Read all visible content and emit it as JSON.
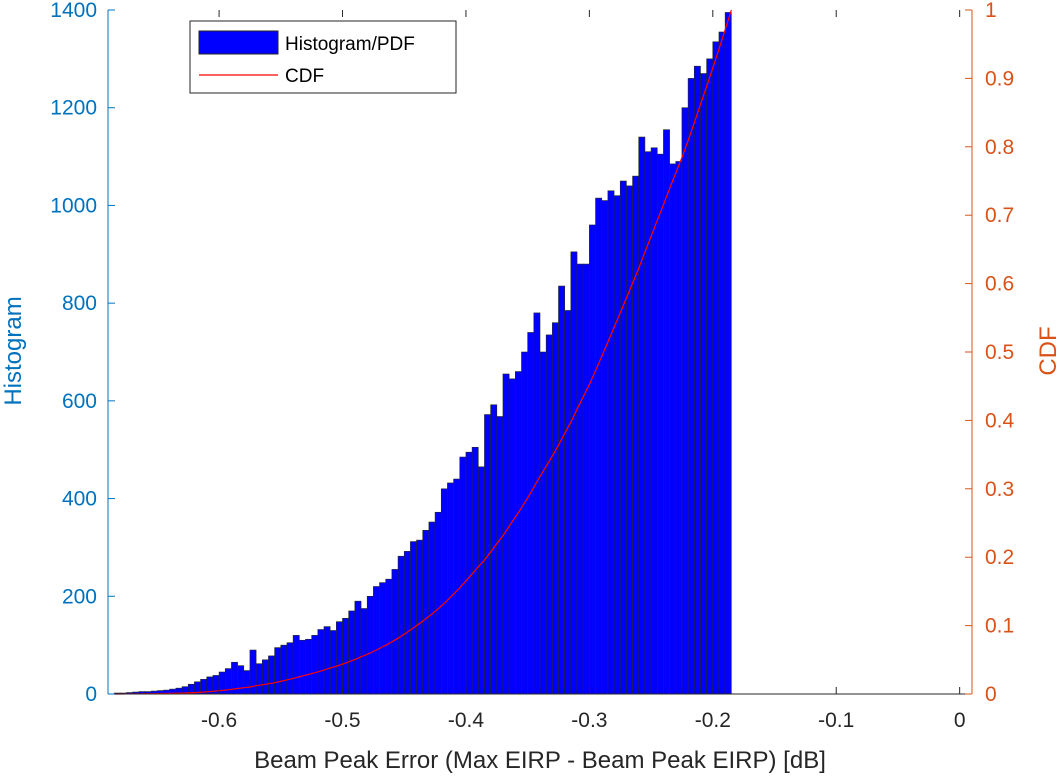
{
  "chart_data": {
    "type": "bar",
    "xlabel": "Beam Peak Error (Max EIRP - Beam Peak EIRP) [dB]",
    "ylabel": "Histogram",
    "y2label": "CDF",
    "xlim": [
      -0.69,
      0.01
    ],
    "ylim": [
      0,
      1400
    ],
    "y2lim": [
      0,
      1
    ],
    "xticks": [
      "-0.6",
      "-0.5",
      "-0.4",
      "-0.3",
      "-0.2",
      "-0.1",
      "0"
    ],
    "yticks": [
      "0",
      "200",
      "400",
      "600",
      "800",
      "1000",
      "1200",
      "1400"
    ],
    "y2ticks": [
      "0",
      "0.1",
      "0.2",
      "0.3",
      "0.4",
      "0.5",
      "0.6",
      "0.7",
      "0.8",
      "0.9",
      "1"
    ],
    "grid": false,
    "legend_position": "top-left",
    "legend": [
      {
        "name": "Histogram/PDF",
        "color": "#0000FF"
      },
      {
        "name": "CDF",
        "color": "#FF0000"
      }
    ],
    "colors": {
      "bar": "#0000FF",
      "cdf": "#FF0000",
      "left_axis": "#0072BD",
      "right_axis": "#D95319"
    },
    "bin_width": 0.005,
    "bin_centers_start": -0.6825,
    "histogram": [
      2,
      2,
      3,
      4,
      5,
      5,
      6,
      7,
      8,
      10,
      12,
      15,
      20,
      25,
      30,
      35,
      38,
      45,
      52,
      65,
      58,
      48,
      90,
      62,
      70,
      78,
      95,
      100,
      105,
      120,
      110,
      112,
      120,
      132,
      138,
      130,
      148,
      155,
      170,
      190,
      175,
      200,
      220,
      228,
      235,
      255,
      282,
      292,
      312,
      315,
      335,
      352,
      372,
      420,
      432,
      440,
      485,
      495,
      505,
      465,
      572,
      592,
      568,
      655,
      645,
      660,
      700,
      740,
      780,
      700,
      735,
      760,
      835,
      785,
      905,
      880,
      880,
      960,
      1015,
      1010,
      1030,
      1020,
      1050,
      1040,
      1060,
      1140,
      1110,
      1118,
      1105,
      1155,
      1085,
      1090,
      1200,
      1260,
      1285,
      1270,
      1300,
      1335,
      1355,
      1395
    ]
  }
}
